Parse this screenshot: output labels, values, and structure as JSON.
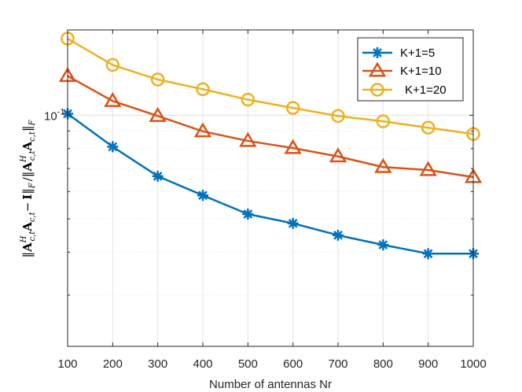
{
  "chart_data": {
    "type": "line",
    "title": "",
    "xlabel": "Number of antennas Nr",
    "ylabel": "||A^H_{c,t} A_{c,t} − I||_F / ||A^H_{c,t} A_{c,t}||_F",
    "yscale": "log",
    "xlim": [
      100,
      1000
    ],
    "ylim": [
      0.0213,
      0.177
    ],
    "grid": true,
    "legend_position": "top-right",
    "x": [
      100,
      200,
      300,
      400,
      500,
      600,
      700,
      800,
      900,
      1000
    ],
    "x_tick_labels": [
      "100",
      "200",
      "300",
      "400",
      "500",
      "600",
      "700",
      "800",
      "900",
      "1000"
    ],
    "y_tick_label": "10",
    "y_tick_exponent": "-1",
    "series": [
      {
        "name": "K+1=5",
        "color": "#0072BD",
        "marker": "asterisk",
        "values": [
          0.101,
          0.081,
          0.0665,
          0.0585,
          0.0516,
          0.0485,
          0.0448,
          0.042,
          0.0396,
          0.0396
        ]
      },
      {
        "name": "K+1=10",
        "color": "#D95319",
        "marker": "triangle",
        "values": [
          0.13,
          0.11,
          0.0995,
          0.0898,
          0.0842,
          0.0803,
          0.0759,
          0.0707,
          0.0693,
          0.0661
        ]
      },
      {
        "name": "K+1=20",
        "color": "#EDB120",
        "marker": "circle",
        "values": [
          0.167,
          0.14,
          0.127,
          0.119,
          0.111,
          0.105,
          0.0995,
          0.096,
          0.092,
          0.0882
        ]
      }
    ]
  },
  "ylabel_parts": {
    "a": "A",
    "i": "I",
    "sup_h": "H",
    "sub_ct": "c,t",
    "sub_f": "F",
    "minus": "−",
    "slash": "/"
  }
}
